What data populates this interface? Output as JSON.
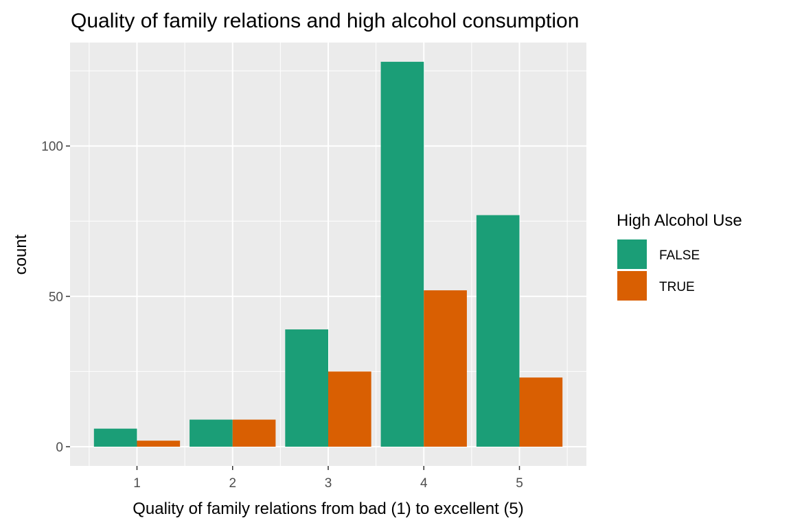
{
  "chart_data": {
    "type": "bar",
    "title": "Quality of family relations and high alcohol consumption",
    "xlabel": "Quality of family relations from bad (1) to excellent (5)",
    "ylabel": "count",
    "categories": [
      "1",
      "2",
      "3",
      "4",
      "5"
    ],
    "series": [
      {
        "name": "FALSE",
        "color": "#1b9e77",
        "values": [
          6,
          9,
          39,
          128,
          77
        ]
      },
      {
        "name": "TRUE",
        "color": "#d95f02",
        "values": [
          2,
          9,
          25,
          52,
          23
        ]
      }
    ],
    "ylim": [
      -6.4,
      134.4
    ],
    "yticks": [
      0,
      50,
      100
    ],
    "ytick_labels": [
      "0",
      "50",
      "100"
    ],
    "legend": {
      "title": "High Alcohol Use",
      "placement": "right"
    },
    "grid": true,
    "panel_background": "#ebebeb",
    "grid_color": "#ffffff"
  }
}
